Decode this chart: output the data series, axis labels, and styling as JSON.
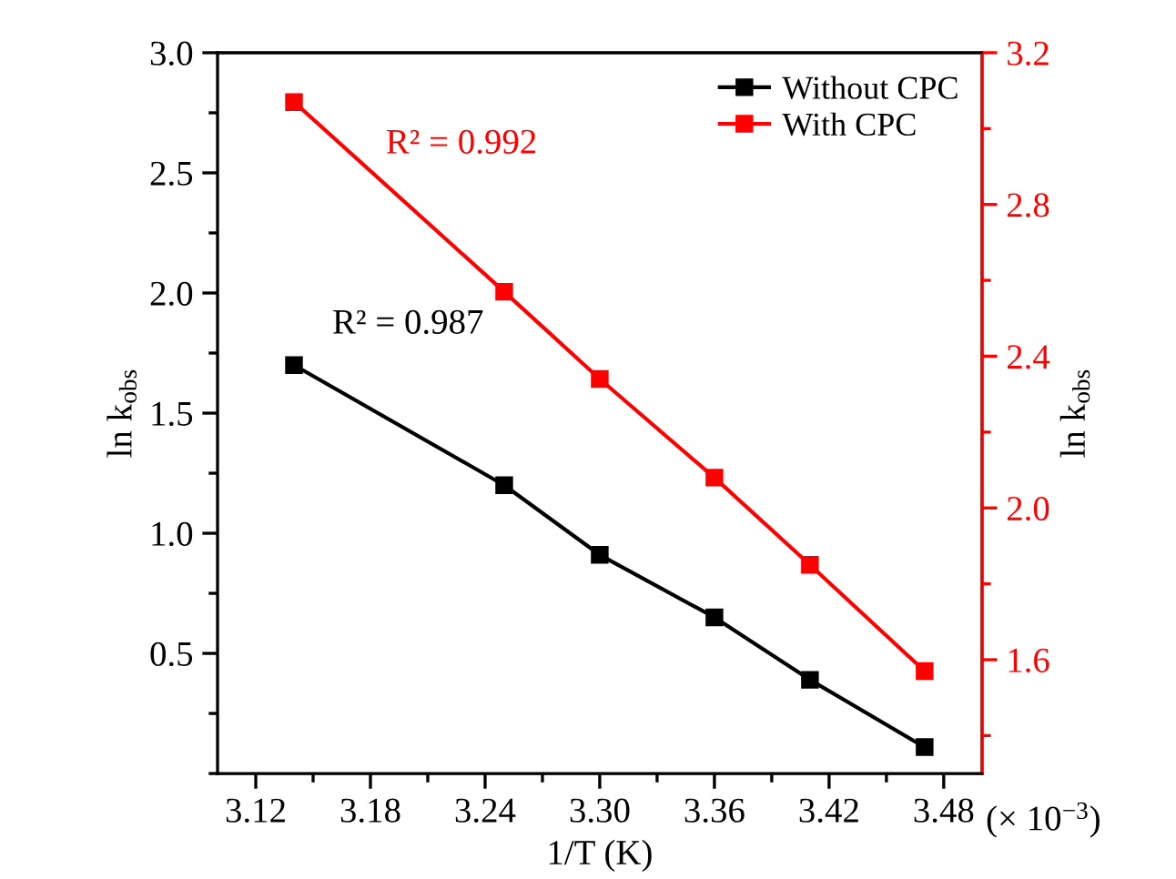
{
  "chart_data": {
    "type": "line",
    "xlabel": "1/T (K)",
    "ylabel": "ln k$_{obs}$",
    "y2label": "ln k$_{obs}$",
    "x": [
      3.14,
      3.25,
      3.3,
      3.36,
      3.41,
      3.47
    ],
    "series": [
      {
        "name": "Without CPC",
        "color": "#000000",
        "values": [
          1.7,
          1.2,
          0.91,
          0.65,
          0.39,
          0.11
        ]
      },
      {
        "name": "With CPC",
        "color": "#ff0000",
        "axis": "y2",
        "values": [
          3.07,
          2.57,
          2.34,
          2.08,
          1.85,
          1.57
        ]
      }
    ],
    "xlim": [
      3.1,
      3.5
    ],
    "xticks": [
      3.12,
      3.18,
      3.24,
      {
        "value": 3.3,
        "label": "3.30"
      },
      3.36,
      3.42,
      3.48
    ],
    "ylim": [
      0.0,
      3.0
    ],
    "yticks": [
      0.5,
      {
        "value": 1,
        "label": "1.0"
      },
      1.5,
      {
        "value": 2,
        "label": "2.0"
      },
      2.5,
      {
        "value": 3,
        "label": "3.0"
      }
    ],
    "y2lim": [
      1.3,
      3.2
    ],
    "y2ticks": [
      1.6,
      {
        "value": 2,
        "label": "2.0"
      },
      2.4,
      2.8,
      3.2
    ],
    "annotations": [
      "R² = 0.987",
      "R² = 0.992",
      "(× 10$^{−3}$)"
    ],
    "legend": "top right",
    "marker": "square",
    "line_style": "solid",
    "grid": false
  }
}
